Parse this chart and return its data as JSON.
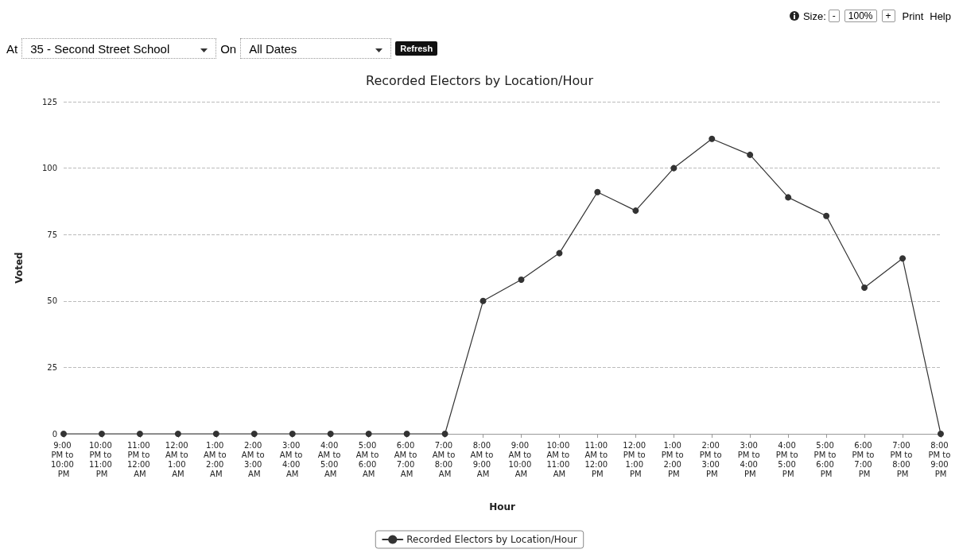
{
  "chart_data": {
    "type": "line",
    "title": "Recorded Electors by Location/Hour",
    "xlabel": "Hour",
    "ylabel": "Voted",
    "categories": [
      "9:00 PM to 10:00 PM",
      "10:00 PM to 11:00 PM",
      "11:00 PM to 12:00 AM",
      "12:00 AM to 1:00 AM",
      "1:00 AM to 2:00 AM",
      "2:00 AM to 3:00 AM",
      "3:00 AM to 4:00 AM",
      "4:00 AM to 5:00 AM",
      "5:00 AM to 6:00 AM",
      "6:00 AM to 7:00 AM",
      "7:00 AM to 8:00 AM",
      "8:00 AM to 9:00 AM",
      "9:00 AM to 10:00 AM",
      "10:00 AM to 11:00 AM",
      "11:00 AM to 12:00 PM",
      "12:00 PM to 1:00 PM",
      "1:00 PM to 2:00 PM",
      "2:00 PM to 3:00 PM",
      "3:00 PM to 4:00 PM",
      "4:00 PM to 5:00 PM",
      "5:00 PM to 6:00 PM",
      "6:00 PM to 7:00 PM",
      "7:00 PM to 8:00 PM",
      "8:00 PM to 9:00 PM"
    ],
    "series": [
      {
        "name": "Recorded Electors by Location/Hour",
        "color": "#333333",
        "values": [
          0,
          0,
          0,
          0,
          0,
          0,
          0,
          0,
          0,
          0,
          0,
          50,
          58,
          68,
          91,
          84,
          100,
          111,
          105,
          89,
          82,
          55,
          66,
          0
        ]
      }
    ],
    "ylim": [
      0,
      125
    ],
    "yticks": [
      0,
      25,
      50,
      75,
      100,
      125
    ],
    "grid": "y",
    "legend": "bottom",
    "marker": "circle",
    "line_style": "solid",
    "annotations": [
      "Size:",
      "-",
      "100%",
      "+",
      "Print",
      "Help",
      "At",
      "35 - Second Street School",
      "On",
      "All Dates",
      "Refresh"
    ]
  }
}
